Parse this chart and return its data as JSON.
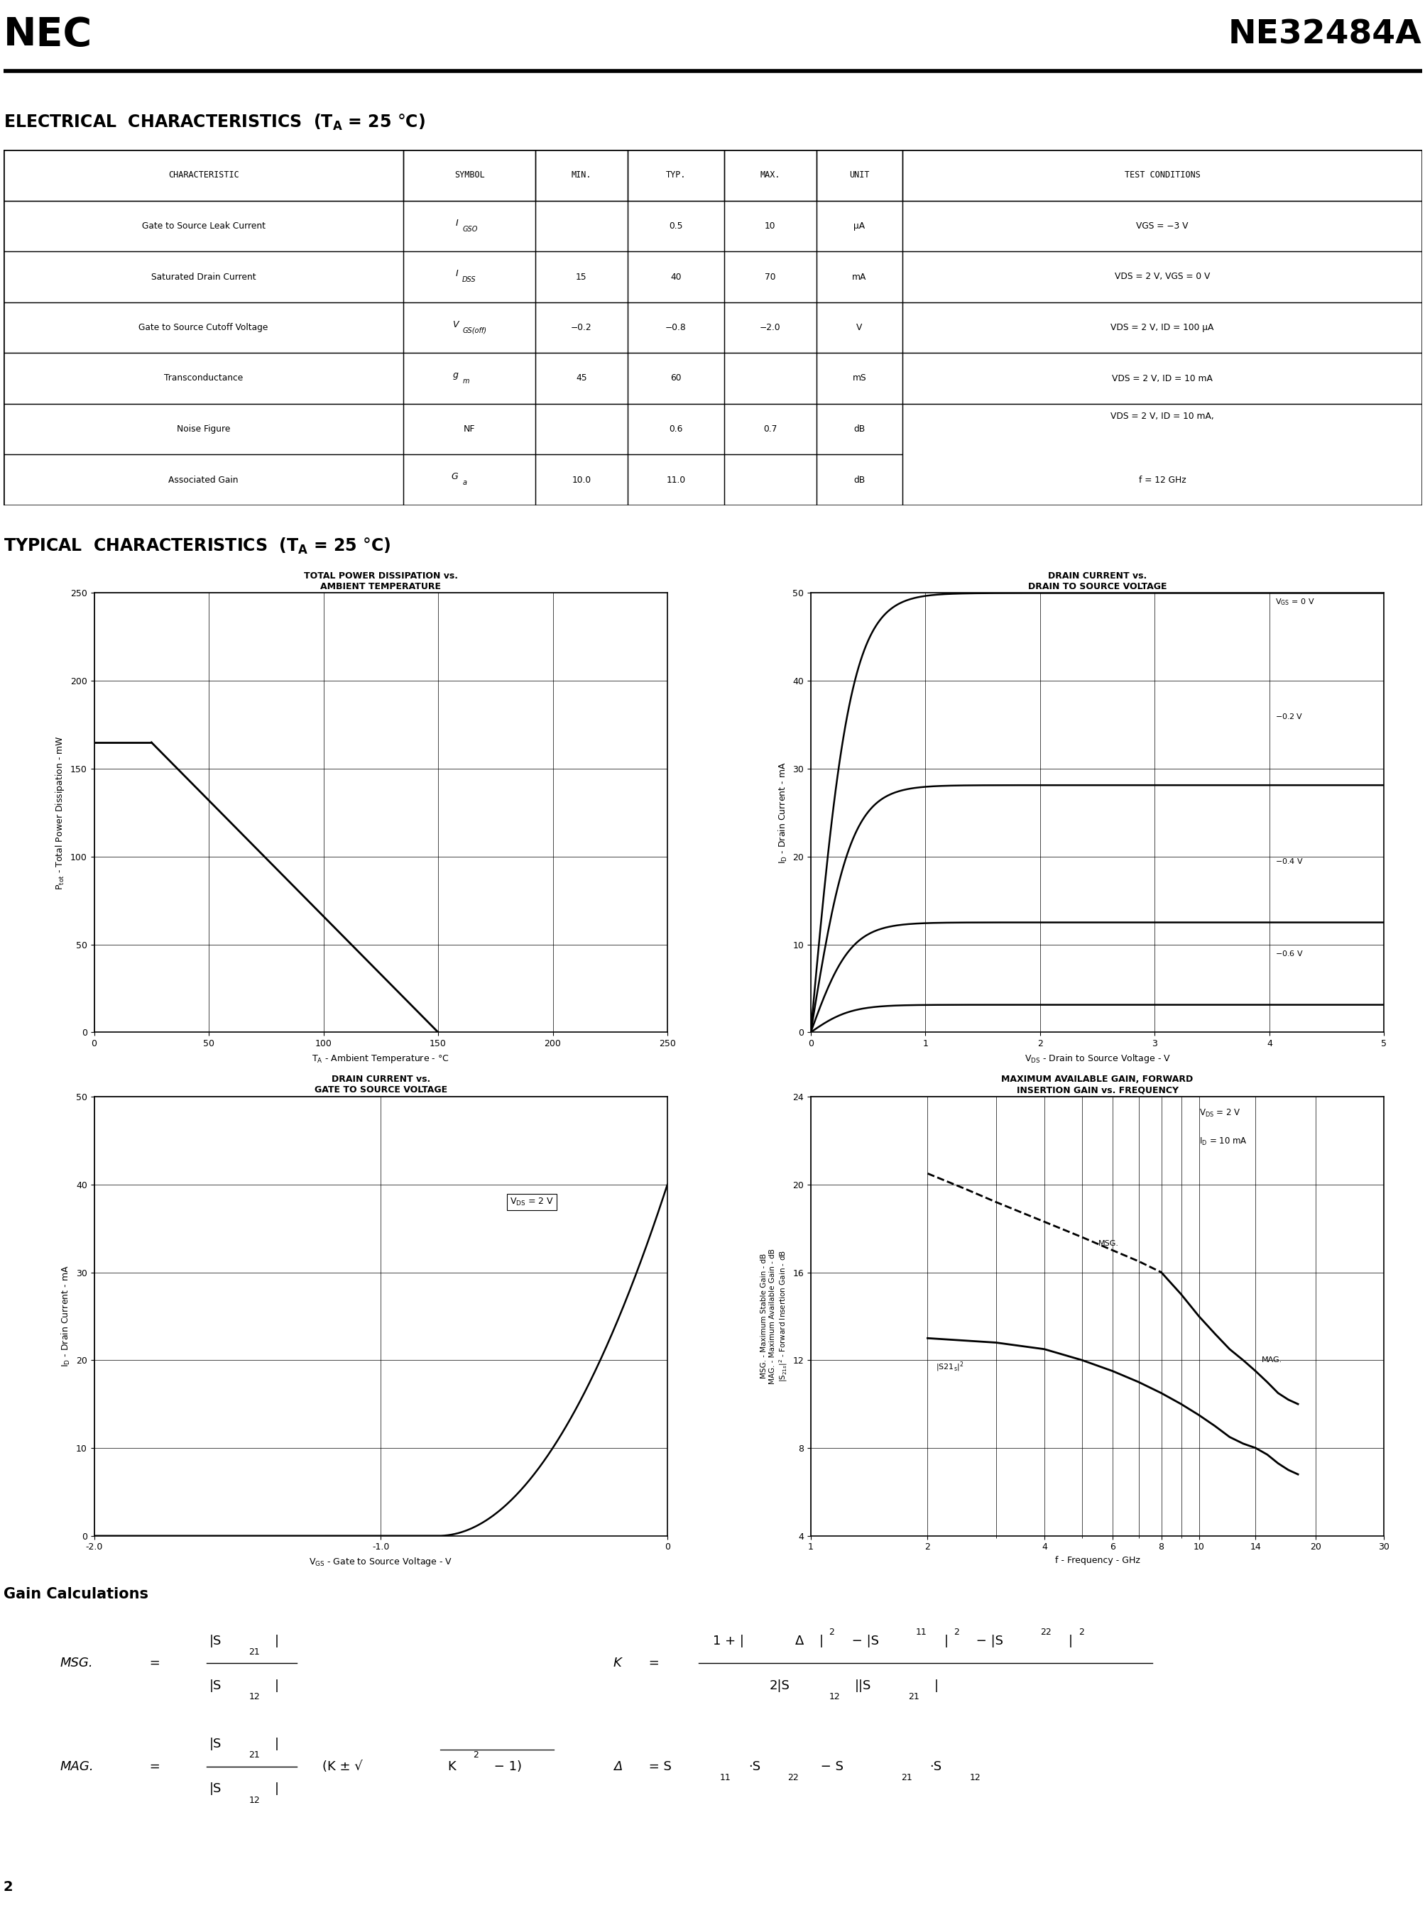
{
  "page_title_left": "NEC",
  "page_title_right": "NE32484A",
  "background_color": "#ffffff",
  "table_headers": [
    "CHARACTERISTIC",
    "SYMBOL",
    "MIN.",
    "TYP.",
    "MAX.",
    "UNIT",
    "TEST CONDITIONS"
  ],
  "table_rows": [
    [
      "Gate to Source Leak Current",
      "I₀ₛ₀",
      "",
      "0.5",
      "10",
      "μA",
      "VGS = −3 V"
    ],
    [
      "Saturated Drain Current",
      "I₀ₛₛ",
      "15",
      "40",
      "70",
      "mA",
      "VDS = 2 V, VGS = 0 V"
    ],
    [
      "Gate to Source Cutoff Voltage",
      "VGS(off)",
      "−0.2",
      "−0.8",
      "−2.0",
      "V",
      "VDS = 2 V, ID = 100 μA"
    ],
    [
      "Transconductance",
      "gm",
      "45",
      "60",
      "",
      "mS",
      "VDS = 2 V, ID = 10 mA"
    ],
    [
      "Noise Figure",
      "NF",
      "",
      "0.6",
      "0.7",
      "dB",
      "VDS = 2 V, ID = 10 mA,"
    ],
    [
      "Associated Gain",
      "Ga",
      "10.0",
      "11.0",
      "",
      "dB",
      "f = 12 GHz"
    ]
  ]
}
